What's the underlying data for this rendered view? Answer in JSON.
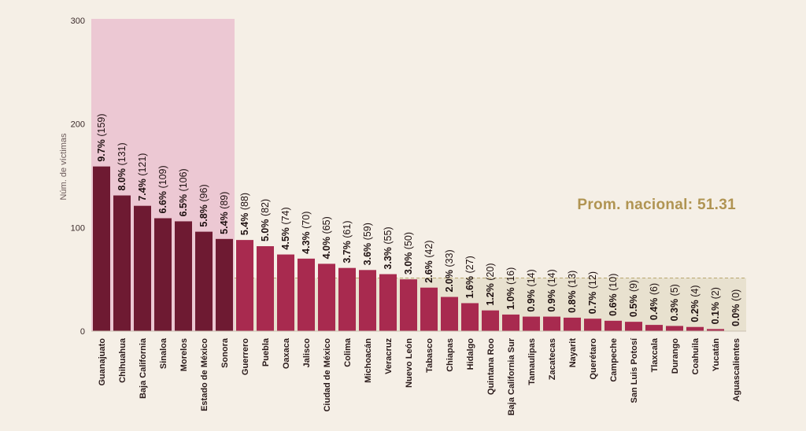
{
  "chart_data": {
    "type": "bar",
    "ylabel": "Núm. de víctimas",
    "ylim": [
      0,
      300
    ],
    "yticks": [
      0,
      100,
      200,
      300
    ],
    "average": {
      "value": 51.31,
      "label": "Prom. nacional: 51.31"
    },
    "highlight_count": 7,
    "colors": {
      "highlight": "#6e1a32",
      "normal": "#a82a4f",
      "highlight_band": "#ecc8d3",
      "average_band": "#e8e1cf",
      "average_text": "#b09452"
    },
    "categories": [
      "Guanajuato",
      "Chihuahua",
      "Baja California",
      "Sinaloa",
      "Morelos",
      "Estado de México",
      "Sonora",
      "Guerrero",
      "Puebla",
      "Oaxaca",
      "Jalisco",
      "Ciudad de México",
      "Colima",
      "Michoacán",
      "Veracruz",
      "Nuevo León",
      "Tabasco",
      "Chiapas",
      "Hidalgo",
      "Quintana Roo",
      "Baja California Sur",
      "Tamaulipas",
      "Zacatecas",
      "Nayarit",
      "Querétaro",
      "Campeche",
      "San Luis Potosí",
      "Tlaxcala",
      "Durango",
      "Coahuila",
      "Yucatán",
      "Aguascalientes"
    ],
    "values": [
      159,
      131,
      121,
      109,
      106,
      96,
      89,
      88,
      82,
      74,
      70,
      65,
      61,
      59,
      55,
      50,
      42,
      33,
      27,
      20,
      16,
      14,
      14,
      13,
      12,
      10,
      9,
      6,
      5,
      4,
      2,
      0
    ],
    "percent_labels": [
      "9.7%",
      "8.0%",
      "7.4%",
      "6.6%",
      "6.5%",
      "5.8%",
      "5.4%",
      "5.4%",
      "5.0%",
      "4.5%",
      "4.3%",
      "4.0%",
      "3.7%",
      "3.6%",
      "3.3%",
      "3.0%",
      "2.6%",
      "2.0%",
      "1.6%",
      "1.2%",
      "1.0%",
      "0.9%",
      "0.9%",
      "0.8%",
      "0.7%",
      "0.6%",
      "0.5%",
      "0.4%",
      "0.3%",
      "0.2%",
      "0.1%",
      "0.0%"
    ],
    "count_labels": [
      "(159)",
      "(131)",
      "(121)",
      "(109)",
      "(106)",
      "(96)",
      "(89)",
      "(88)",
      "(82)",
      "(74)",
      "(70)",
      "(65)",
      "(61)",
      "(59)",
      "(55)",
      "(50)",
      "(42)",
      "(33)",
      "(27)",
      "(20)",
      "(16)",
      "(14)",
      "(14)",
      "(13)",
      "(12)",
      "(10)",
      "(9)",
      "(6)",
      "(5)",
      "(4)",
      "(2)",
      "(0)"
    ]
  }
}
